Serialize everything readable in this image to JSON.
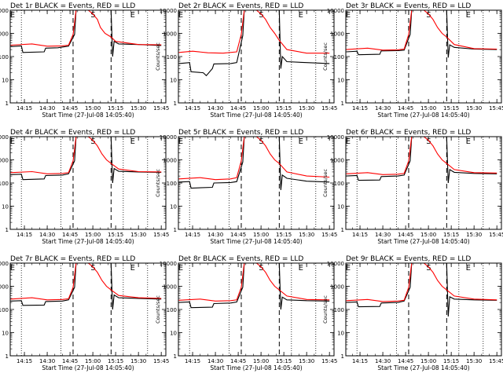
{
  "chart_data": {
    "type": "line",
    "y_scale": "log",
    "ylim": [
      1,
      10000
    ],
    "xlim": [
      "14:05:40",
      "15:48:00"
    ],
    "shared_xlabel": "Start Time (27-Jul-08 14:05:40)",
    "shared_ylabel": "Counts/sec",
    "x_ticks": [
      "14:15",
      "14:30",
      "14:45",
      "15:00",
      "15:15",
      "15:30",
      "15:45"
    ],
    "y_ticks": [
      {
        "value": 1,
        "label": "1"
      },
      {
        "value": 10,
        "label": "10"
      },
      {
        "value": 100,
        "label": "100"
      },
      {
        "value": 1000,
        "label": "1000"
      },
      {
        "value": 10000,
        "label": "10000"
      }
    ],
    "dashed_markers": [
      "14:47",
      "15:12"
    ],
    "dotted_markers": [
      "14:13",
      "14:39",
      "15:20",
      "15:36"
    ],
    "marker_letters": [
      {
        "time": "14:05",
        "letter": "E"
      },
      {
        "time": "14:58",
        "letter": "S"
      },
      {
        "time": "15:24",
        "letter": "E"
      }
    ],
    "series_colors": {
      "events": "#000000",
      "lld": "#ff0000"
    },
    "panels": [
      {
        "title": "Det 1r BLACK = Events, RED = LLD",
        "events": [
          [
            "14:06",
            270
          ],
          [
            "14:13",
            290
          ],
          [
            "14:14",
            150
          ],
          [
            "14:28",
            160
          ],
          [
            "14:29",
            230
          ],
          [
            "14:37",
            240
          ],
          [
            "14:42",
            270
          ],
          [
            "14:44",
            280
          ],
          [
            "14:48",
            900
          ],
          [
            "14:49",
            10000
          ],
          [
            "15:12",
            10000
          ],
          [
            "15:13",
            100
          ],
          [
            "15:14",
            450
          ],
          [
            "15:17",
            350
          ],
          [
            "15:30",
            330
          ],
          [
            "15:45",
            300
          ]
        ],
        "lld": [
          [
            "14:06",
            310
          ],
          [
            "14:20",
            350
          ],
          [
            "14:30",
            280
          ],
          [
            "14:40",
            290
          ],
          [
            "14:44",
            310
          ],
          [
            "14:47",
            900
          ],
          [
            "14:49",
            10000
          ],
          [
            "14:57",
            10000
          ],
          [
            "15:00",
            7000
          ],
          [
            "15:03",
            4000
          ],
          [
            "15:05",
            1800
          ],
          [
            "15:08",
            1000
          ],
          [
            "15:12",
            700
          ],
          [
            "15:15",
            450
          ],
          [
            "15:30",
            330
          ],
          [
            "15:45",
            320
          ]
        ]
      },
      {
        "title": "Det 2r BLACK = Events, RED = LLD",
        "events": [
          [
            "14:06",
            50
          ],
          [
            "14:13",
            55
          ],
          [
            "14:14",
            22
          ],
          [
            "14:22",
            20
          ],
          [
            "14:24",
            15
          ],
          [
            "14:28",
            30
          ],
          [
            "14:29",
            48
          ],
          [
            "14:40",
            50
          ],
          [
            "14:44",
            55
          ],
          [
            "14:48",
            800
          ],
          [
            "14:49",
            10000
          ],
          [
            "15:12",
            10000
          ],
          [
            "15:13",
            30
          ],
          [
            "15:14",
            100
          ],
          [
            "15:17",
            60
          ],
          [
            "15:30",
            55
          ],
          [
            "15:45",
            50
          ]
        ],
        "lld": [
          [
            "14:06",
            150
          ],
          [
            "14:15",
            170
          ],
          [
            "14:25",
            145
          ],
          [
            "14:35",
            140
          ],
          [
            "14:44",
            160
          ],
          [
            "14:47",
            900
          ],
          [
            "14:49",
            10000
          ],
          [
            "14:57",
            10000
          ],
          [
            "15:00",
            7000
          ],
          [
            "15:03",
            4000
          ],
          [
            "15:06",
            1800
          ],
          [
            "15:09",
            1000
          ],
          [
            "15:12",
            500
          ],
          [
            "15:17",
            200
          ],
          [
            "15:30",
            140
          ],
          [
            "15:45",
            140
          ]
        ]
      },
      {
        "title": "Det 3r BLACK = Events, RED = LLD",
        "events": [
          [
            "14:06",
            160
          ],
          [
            "14:13",
            170
          ],
          [
            "14:14",
            120
          ],
          [
            "14:28",
            125
          ],
          [
            "14:29",
            175
          ],
          [
            "14:40",
            180
          ],
          [
            "14:44",
            190
          ],
          [
            "14:48",
            900
          ],
          [
            "14:49",
            10000
          ],
          [
            "15:12",
            10000
          ],
          [
            "15:13",
            90
          ],
          [
            "15:14",
            320
          ],
          [
            "15:17",
            250
          ],
          [
            "15:30",
            210
          ],
          [
            "15:45",
            200
          ]
        ],
        "lld": [
          [
            "14:06",
            200
          ],
          [
            "14:20",
            230
          ],
          [
            "14:30",
            190
          ],
          [
            "14:40",
            195
          ],
          [
            "14:44",
            210
          ],
          [
            "14:47",
            900
          ],
          [
            "14:49",
            10000
          ],
          [
            "14:57",
            10000
          ],
          [
            "15:00",
            7000
          ],
          [
            "15:03",
            4000
          ],
          [
            "15:06",
            1800
          ],
          [
            "15:09",
            1000
          ],
          [
            "15:12",
            700
          ],
          [
            "15:17",
            330
          ],
          [
            "15:30",
            220
          ],
          [
            "15:45",
            210
          ]
        ]
      },
      {
        "title": "Det 4r BLACK = Events, RED = LLD",
        "events": [
          [
            "14:06",
            230
          ],
          [
            "14:13",
            240
          ],
          [
            "14:14",
            140
          ],
          [
            "14:28",
            150
          ],
          [
            "14:29",
            210
          ],
          [
            "14:40",
            220
          ],
          [
            "14:44",
            250
          ],
          [
            "14:48",
            900
          ],
          [
            "14:49",
            10000
          ],
          [
            "15:12",
            10000
          ],
          [
            "15:13",
            100
          ],
          [
            "15:14",
            420
          ],
          [
            "15:17",
            320
          ],
          [
            "15:30",
            300
          ],
          [
            "15:45",
            290
          ]
        ],
        "lld": [
          [
            "14:06",
            280
          ],
          [
            "14:20",
            310
          ],
          [
            "14:30",
            250
          ],
          [
            "14:40",
            260
          ],
          [
            "14:44",
            280
          ],
          [
            "14:47",
            900
          ],
          [
            "14:49",
            10000
          ],
          [
            "14:57",
            10000
          ],
          [
            "15:00",
            7000
          ],
          [
            "15:03",
            4000
          ],
          [
            "15:06",
            1800
          ],
          [
            "15:09",
            1000
          ],
          [
            "15:12",
            700
          ],
          [
            "15:17",
            400
          ],
          [
            "15:30",
            310
          ],
          [
            "15:45",
            300
          ]
        ]
      },
      {
        "title": "Det 5r BLACK = Events, RED = LLD",
        "events": [
          [
            "14:06",
            110
          ],
          [
            "14:13",
            115
          ],
          [
            "14:14",
            60
          ],
          [
            "14:28",
            65
          ],
          [
            "14:29",
            100
          ],
          [
            "14:40",
            105
          ],
          [
            "14:44",
            115
          ],
          [
            "14:48",
            800
          ],
          [
            "14:49",
            10000
          ],
          [
            "15:12",
            10000
          ],
          [
            "15:13",
            50
          ],
          [
            "15:14",
            220
          ],
          [
            "15:17",
            160
          ],
          [
            "15:30",
            120
          ],
          [
            "15:45",
            110
          ]
        ],
        "lld": [
          [
            "14:06",
            150
          ],
          [
            "14:20",
            170
          ],
          [
            "14:30",
            140
          ],
          [
            "14:40",
            150
          ],
          [
            "14:44",
            170
          ],
          [
            "14:47",
            900
          ],
          [
            "14:49",
            10000
          ],
          [
            "14:57",
            10000
          ],
          [
            "15:00",
            7000
          ],
          [
            "15:03",
            4000
          ],
          [
            "15:06",
            1800
          ],
          [
            "15:09",
            1000
          ],
          [
            "15:12",
            700
          ],
          [
            "15:17",
            300
          ],
          [
            "15:30",
            200
          ],
          [
            "15:45",
            180
          ]
        ]
      },
      {
        "title": "Det 6r BLACK = Events, RED = LLD",
        "events": [
          [
            "14:06",
            200
          ],
          [
            "14:13",
            210
          ],
          [
            "14:14",
            130
          ],
          [
            "14:28",
            135
          ],
          [
            "14:29",
            190
          ],
          [
            "14:40",
            200
          ],
          [
            "14:44",
            220
          ],
          [
            "14:48",
            900
          ],
          [
            "14:49",
            10000
          ],
          [
            "15:12",
            10000
          ],
          [
            "15:13",
            100
          ],
          [
            "15:14",
            380
          ],
          [
            "15:17",
            290
          ],
          [
            "15:30",
            260
          ],
          [
            "15:45",
            250
          ]
        ],
        "lld": [
          [
            "14:06",
            250
          ],
          [
            "14:20",
            280
          ],
          [
            "14:30",
            230
          ],
          [
            "14:40",
            240
          ],
          [
            "14:44",
            260
          ],
          [
            "14:47",
            900
          ],
          [
            "14:49",
            10000
          ],
          [
            "14:57",
            10000
          ],
          [
            "15:00",
            7000
          ],
          [
            "15:03",
            4000
          ],
          [
            "15:06",
            1800
          ],
          [
            "15:09",
            1000
          ],
          [
            "15:12",
            700
          ],
          [
            "15:17",
            380
          ],
          [
            "15:30",
            280
          ],
          [
            "15:45",
            270
          ]
        ]
      },
      {
        "title": "Det 7r BLACK = Events, RED = LLD",
        "events": [
          [
            "14:06",
            230
          ],
          [
            "14:13",
            240
          ],
          [
            "14:14",
            150
          ],
          [
            "14:28",
            155
          ],
          [
            "14:29",
            220
          ],
          [
            "14:40",
            230
          ],
          [
            "14:44",
            260
          ],
          [
            "14:48",
            900
          ],
          [
            "14:49",
            10000
          ],
          [
            "15:12",
            10000
          ],
          [
            "15:13",
            100
          ],
          [
            "15:14",
            420
          ],
          [
            "15:17",
            320
          ],
          [
            "15:30",
            300
          ],
          [
            "15:45",
            280
          ]
        ],
        "lld": [
          [
            "14:06",
            280
          ],
          [
            "14:20",
            320
          ],
          [
            "14:30",
            260
          ],
          [
            "14:40",
            270
          ],
          [
            "14:44",
            290
          ],
          [
            "14:47",
            900
          ],
          [
            "14:49",
            10000
          ],
          [
            "14:57",
            10000
          ],
          [
            "15:00",
            7000
          ],
          [
            "15:03",
            4000
          ],
          [
            "15:06",
            1800
          ],
          [
            "15:09",
            1000
          ],
          [
            "15:12",
            700
          ],
          [
            "15:17",
            400
          ],
          [
            "15:30",
            320
          ],
          [
            "15:45",
            300
          ]
        ]
      },
      {
        "title": "Det 8r BLACK = Events, RED = LLD",
        "events": [
          [
            "14:06",
            200
          ],
          [
            "14:13",
            210
          ],
          [
            "14:14",
            120
          ],
          [
            "14:28",
            125
          ],
          [
            "14:29",
            180
          ],
          [
            "14:40",
            190
          ],
          [
            "14:44",
            210
          ],
          [
            "14:48",
            900
          ],
          [
            "14:49",
            10000
          ],
          [
            "15:12",
            10000
          ],
          [
            "15:13",
            100
          ],
          [
            "15:14",
            340
          ],
          [
            "15:17",
            260
          ],
          [
            "15:30",
            240
          ],
          [
            "15:45",
            230
          ]
        ],
        "lld": [
          [
            "14:06",
            250
          ],
          [
            "14:20",
            280
          ],
          [
            "14:30",
            230
          ],
          [
            "14:40",
            240
          ],
          [
            "14:44",
            260
          ],
          [
            "14:47",
            900
          ],
          [
            "14:49",
            10000
          ],
          [
            "14:57",
            10000
          ],
          [
            "15:00",
            7000
          ],
          [
            "15:03",
            4000
          ],
          [
            "15:06",
            1800
          ],
          [
            "15:09",
            1000
          ],
          [
            "15:12",
            700
          ],
          [
            "15:17",
            380
          ],
          [
            "15:30",
            270
          ],
          [
            "15:45",
            260
          ]
        ]
      },
      {
        "title": "Det 9r BLACK = Events, RED = LLD",
        "events": [
          [
            "14:06",
            200
          ],
          [
            "14:13",
            210
          ],
          [
            "14:14",
            130
          ],
          [
            "14:28",
            135
          ],
          [
            "14:29",
            190
          ],
          [
            "14:40",
            200
          ],
          [
            "14:44",
            230
          ],
          [
            "14:48",
            900
          ],
          [
            "14:49",
            10000
          ],
          [
            "15:12",
            10000
          ],
          [
            "15:13",
            50
          ],
          [
            "15:14",
            350
          ],
          [
            "15:17",
            280
          ],
          [
            "15:30",
            260
          ],
          [
            "15:45",
            250
          ]
        ],
        "lld": [
          [
            "14:06",
            240
          ],
          [
            "14:20",
            270
          ],
          [
            "14:30",
            220
          ],
          [
            "14:40",
            230
          ],
          [
            "14:44",
            250
          ],
          [
            "14:47",
            900
          ],
          [
            "14:49",
            10000
          ],
          [
            "14:57",
            10000
          ],
          [
            "15:00",
            7000
          ],
          [
            "15:03",
            4000
          ],
          [
            "15:06",
            1800
          ],
          [
            "15:09",
            1000
          ],
          [
            "15:12",
            700
          ],
          [
            "15:17",
            380
          ],
          [
            "15:30",
            280
          ],
          [
            "15:45",
            260
          ]
        ]
      }
    ]
  }
}
